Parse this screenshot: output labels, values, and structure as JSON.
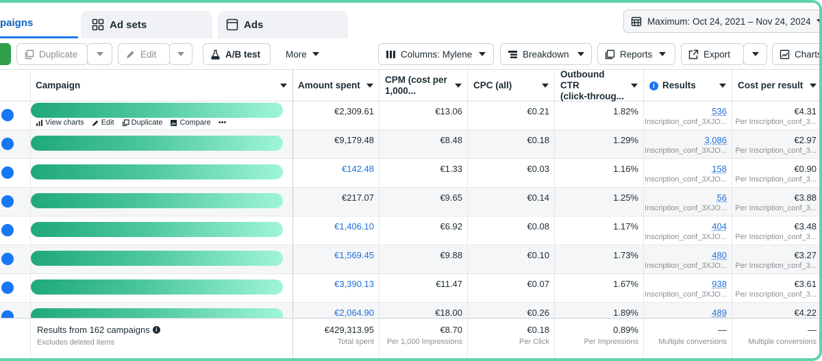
{
  "tabs": {
    "campaigns": "paigns",
    "ad_sets": "Ad sets",
    "ads": "Ads"
  },
  "date_range": "Maximum: Oct 24, 2021 – Nov 24, 2024",
  "toolbar": {
    "duplicate": "Duplicate",
    "edit": "Edit",
    "ab_test": "A/B test",
    "more": "More",
    "columns": "Columns: Mylene",
    "breakdown": "Breakdown",
    "reports": "Reports",
    "export": "Export",
    "charts": "Charts"
  },
  "columns": {
    "campaign": "Campaign",
    "amount_spent": "Amount spent",
    "cpm_line1": "CPM (cost per",
    "cpm_line2": "1,000...",
    "cpc": "CPC (all)",
    "ctr_line1": "Outbound CTR",
    "ctr_line2": "(click-throug...",
    "results": "Results",
    "cost_per_result": "Cost per result"
  },
  "row_actions": {
    "view_charts": "View charts",
    "edit": "Edit",
    "duplicate": "Duplicate",
    "compare": "Compare",
    "more": "•••"
  },
  "rows": [
    {
      "amount": "€2,309.61",
      "amount_link": false,
      "cpm": "€13.06",
      "cpc": "€0.21",
      "ctr": "1.82%",
      "results": "536",
      "results_sub": "Inscription_conf_3XJO...",
      "cpr": "€4.31",
      "cpr_sub": "Per Inscription_conf_3..."
    },
    {
      "amount": "€9,179.48",
      "amount_link": false,
      "cpm": "€8.48",
      "cpc": "€0.18",
      "ctr": "1.29%",
      "results": "3,086",
      "results_sub": "Inscription_conf_3XJO...",
      "cpr": "€2.97",
      "cpr_sub": "Per Inscription_conf_3..."
    },
    {
      "amount": "€142.48",
      "amount_link": true,
      "cpm": "€1.33",
      "cpc": "€0.03",
      "ctr": "1.16%",
      "results": "158",
      "results_sub": "Inscription_conf_3XJO...",
      "cpr": "€0.90",
      "cpr_sub": "Per Inscription_conf_3..."
    },
    {
      "amount": "€217.07",
      "amount_link": false,
      "cpm": "€9.65",
      "cpc": "€0.14",
      "ctr": "1.25%",
      "results": "56",
      "results_sub": "Inscription_conf_3XJO...",
      "cpr": "€3.88",
      "cpr_sub": "Per Inscription_conf_3..."
    },
    {
      "amount": "€1,406.10",
      "amount_link": true,
      "cpm": "€6.92",
      "cpc": "€0.08",
      "ctr": "1.17%",
      "results": "404",
      "results_sub": "Inscription_conf_3XJO...",
      "cpr": "€3.48",
      "cpr_sub": "Per Inscription_conf_3..."
    },
    {
      "amount": "€1,569.45",
      "amount_link": true,
      "cpm": "€9.88",
      "cpc": "€0.10",
      "ctr": "1.73%",
      "results": "480",
      "results_sub": "Inscription_conf_3XJO...",
      "cpr": "€3.27",
      "cpr_sub": "Per Inscription_conf_3..."
    },
    {
      "amount": "€3,390.13",
      "amount_link": true,
      "cpm": "€11.47",
      "cpc": "€0.07",
      "ctr": "1.67%",
      "results": "938",
      "results_sub": "Inscription_conf_3XJO...",
      "cpr": "€3.61",
      "cpr_sub": "Per Inscription_conf_3..."
    },
    {
      "amount": "€2,064.90",
      "amount_link": true,
      "cpm": "€18.00",
      "cpc": "€0.26",
      "ctr": "1.89%",
      "results": "489",
      "results_sub": "",
      "cpr": "€4.22",
      "cpr_sub": ""
    }
  ],
  "footer": {
    "title": "Results from 162 campaigns",
    "subtitle": "Excludes deleted items",
    "amount": "€429,313.95",
    "amount_sub": "Total spent",
    "cpm": "€8.70",
    "cpm_sub": "Per 1,000 Impressions",
    "cpc": "€0.18",
    "cpc_sub": "Per Click",
    "ctr": "0.89%",
    "ctr_sub": "Per Impressions",
    "results": "—",
    "results_sub": "Multiple conversions",
    "cpr": "—",
    "cpr_sub": "Multiple conversions"
  },
  "colors": {
    "accent": "#1877f2",
    "link": "#216fdb",
    "frame": "#5fd3a9",
    "bar_start": "#1fa979",
    "bar_end": "#9ff5d9"
  }
}
